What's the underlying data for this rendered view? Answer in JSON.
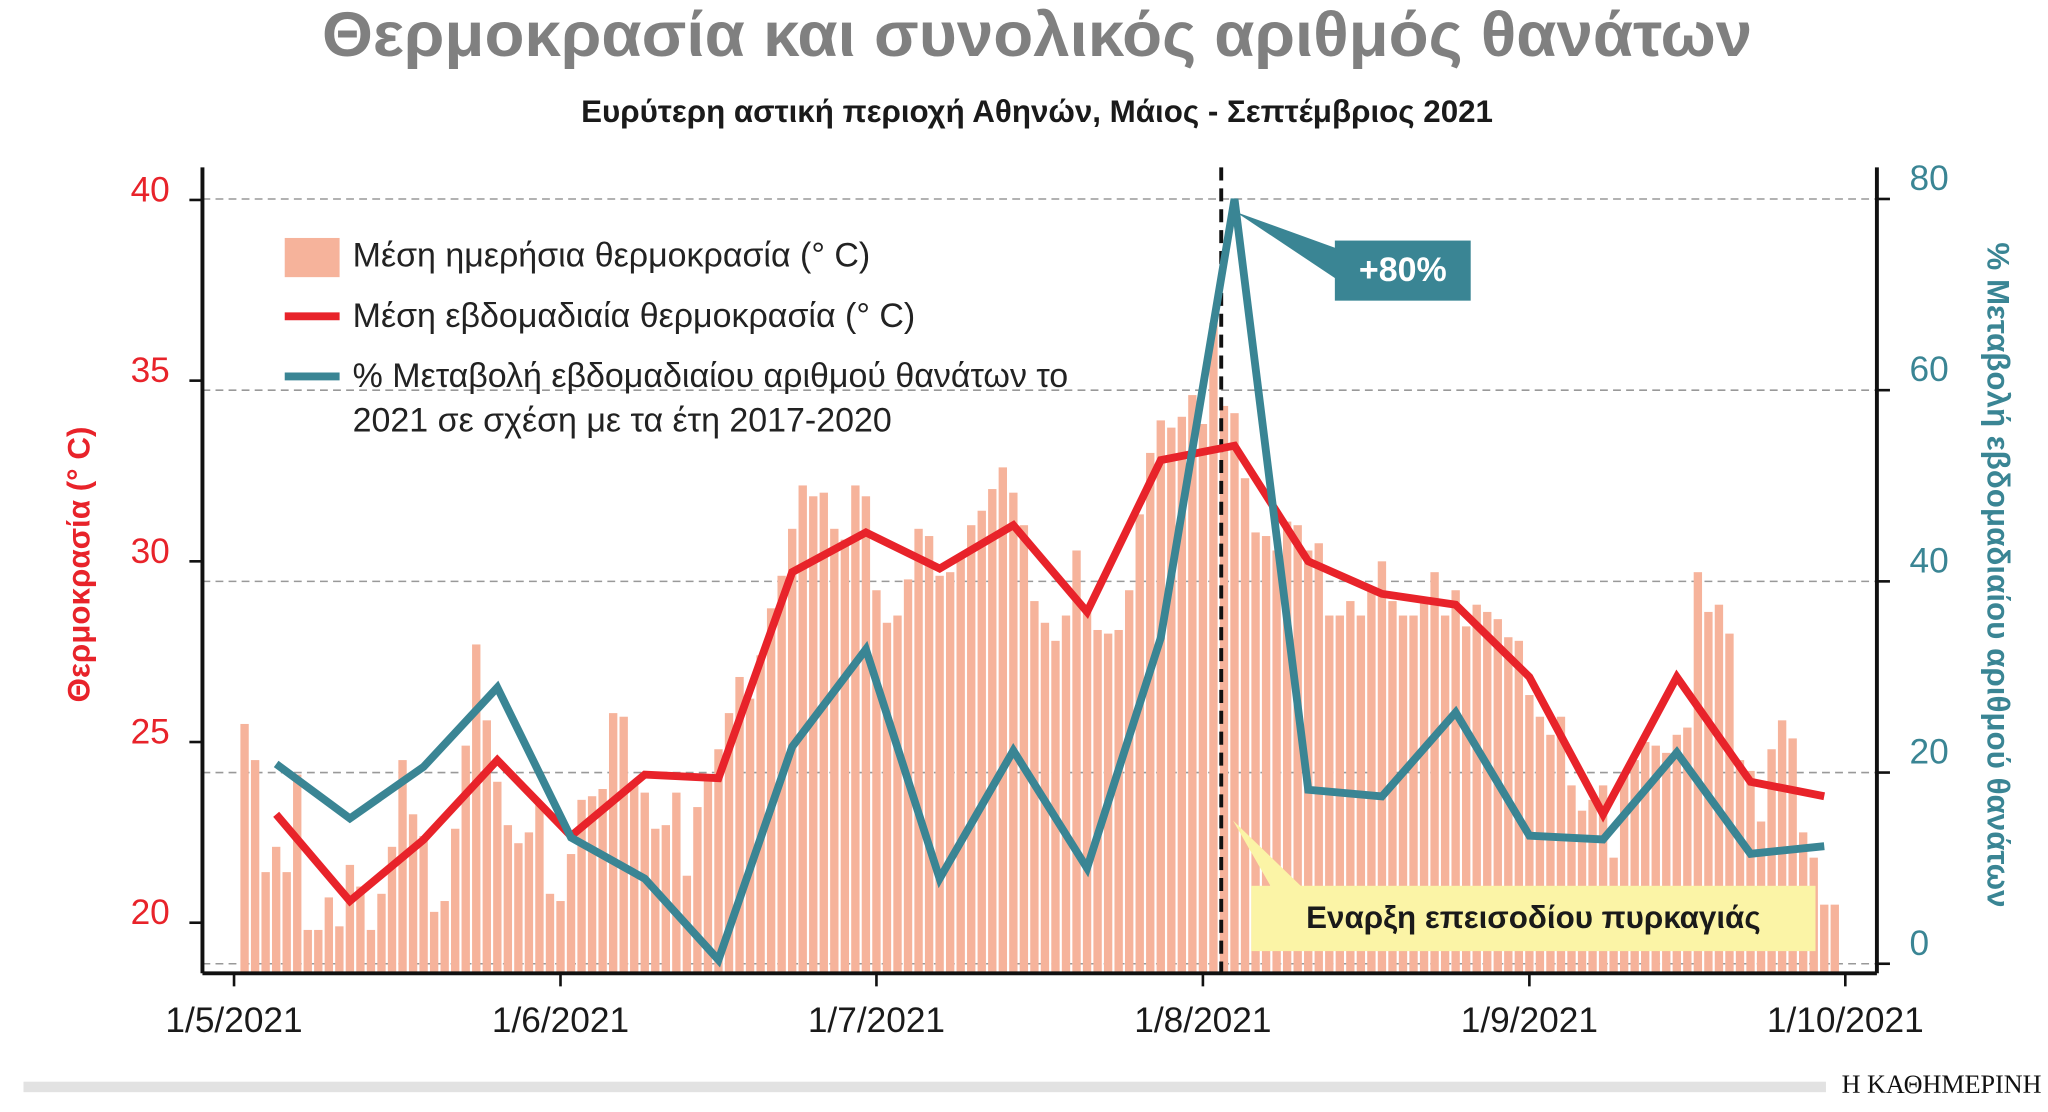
{
  "chart_data": {
    "type": "combo",
    "title": "Θερμοκρασία και συνολικός αριθμός θανάτων",
    "subtitle": "Ευρύτερη αστική περιοχή Αθηνών, Μάιος - Σεπτέμβριος 2021",
    "y_label": "Θερμοκρασία (° C)",
    "y2_label": "% Μεταβολή εβδομαδιαίου αριθμού θανάτων",
    "source": "Η ΚΑΘΗΜΕΡΙΝΗ",
    "xlim": [
      "2021-04-28",
      "2021-10-04"
    ],
    "xticks": [
      {
        "value": "2021-05-01",
        "label": "1/5/2021"
      },
      {
        "value": "2021-06-01",
        "label": "1/6/2021"
      },
      {
        "value": "2021-07-01",
        "label": "1/7/2021"
      },
      {
        "value": "2021-08-01",
        "label": "1/8/2021"
      },
      {
        "value": "2021-09-01",
        "label": "1/9/2021"
      },
      {
        "value": "2021-10-01",
        "label": "1/10/2021"
      }
    ],
    "ylim": [
      18.6,
      40.9
    ],
    "yticks": [
      20,
      25,
      30,
      35,
      40
    ],
    "y2lim": [
      -1,
      83.3
    ],
    "y2ticks": [
      0,
      20,
      40,
      60,
      80
    ],
    "grid": "y2",
    "series": [
      {
        "name": "Μέση ημερήσια θερμοκρασία (° C)",
        "type": "bar",
        "color": "#f6b39b",
        "x": [
          "2021-05-02",
          "2021-05-03",
          "2021-05-04",
          "2021-05-05",
          "2021-05-06",
          "2021-05-07",
          "2021-05-08",
          "2021-05-09",
          "2021-05-10",
          "2021-05-11",
          "2021-05-12",
          "2021-05-13",
          "2021-05-14",
          "2021-05-15",
          "2021-05-16",
          "2021-05-17",
          "2021-05-18",
          "2021-05-19",
          "2021-05-20",
          "2021-05-21",
          "2021-05-22",
          "2021-05-23",
          "2021-05-24",
          "2021-05-25",
          "2021-05-26",
          "2021-05-27",
          "2021-05-28",
          "2021-05-29",
          "2021-05-30",
          "2021-05-31",
          "2021-06-01",
          "2021-06-02",
          "2021-06-03",
          "2021-06-04",
          "2021-06-05",
          "2021-06-06",
          "2021-06-07",
          "2021-06-08",
          "2021-06-09",
          "2021-06-10",
          "2021-06-11",
          "2021-06-12",
          "2021-06-13",
          "2021-06-14",
          "2021-06-15",
          "2021-06-16",
          "2021-06-17",
          "2021-06-18",
          "2021-06-19",
          "2021-06-20",
          "2021-06-21",
          "2021-06-22",
          "2021-06-23",
          "2021-06-24",
          "2021-06-25",
          "2021-06-26",
          "2021-06-27",
          "2021-06-28",
          "2021-06-29",
          "2021-06-30",
          "2021-07-01",
          "2021-07-02",
          "2021-07-03",
          "2021-07-04",
          "2021-07-05",
          "2021-07-06",
          "2021-07-07",
          "2021-07-08",
          "2021-07-09",
          "2021-07-10",
          "2021-07-11",
          "2021-07-12",
          "2021-07-13",
          "2021-07-14",
          "2021-07-15",
          "2021-07-16",
          "2021-07-17",
          "2021-07-18",
          "2021-07-19",
          "2021-07-20",
          "2021-07-21",
          "2021-07-22",
          "2021-07-23",
          "2021-07-24",
          "2021-07-25",
          "2021-07-26",
          "2021-07-27",
          "2021-07-28",
          "2021-07-29",
          "2021-07-30",
          "2021-07-31",
          "2021-08-01",
          "2021-08-02",
          "2021-08-03",
          "2021-08-04",
          "2021-08-05",
          "2021-08-06",
          "2021-08-07",
          "2021-08-08",
          "2021-08-09",
          "2021-08-10",
          "2021-08-11",
          "2021-08-12",
          "2021-08-13",
          "2021-08-14",
          "2021-08-15",
          "2021-08-16",
          "2021-08-17",
          "2021-08-18",
          "2021-08-19",
          "2021-08-20",
          "2021-08-21",
          "2021-08-22",
          "2021-08-23",
          "2021-08-24",
          "2021-08-25",
          "2021-08-26",
          "2021-08-27",
          "2021-08-28",
          "2021-08-29",
          "2021-08-30",
          "2021-08-31",
          "2021-09-01",
          "2021-09-02",
          "2021-09-03",
          "2021-09-04",
          "2021-09-05",
          "2021-09-06",
          "2021-09-07",
          "2021-09-08",
          "2021-09-09",
          "2021-09-10",
          "2021-09-11",
          "2021-09-12",
          "2021-09-13",
          "2021-09-14",
          "2021-09-15",
          "2021-09-16",
          "2021-09-17",
          "2021-09-18",
          "2021-09-19",
          "2021-09-20",
          "2021-09-21",
          "2021-09-22",
          "2021-09-23",
          "2021-09-24",
          "2021-09-25",
          "2021-09-26",
          "2021-09-27",
          "2021-09-28",
          "2021-09-29",
          "2021-09-30"
        ],
        "values": [
          25.5,
          24.5,
          21.4,
          22.1,
          21.4,
          24.1,
          19.8,
          19.8,
          20.7,
          19.9,
          21.6,
          21.0,
          19.8,
          20.8,
          22.1,
          24.5,
          23.0,
          22.4,
          20.3,
          20.6,
          22.6,
          24.9,
          27.7,
          25.6,
          23.9,
          22.7,
          22.2,
          22.5,
          23.3,
          20.8,
          20.6,
          21.9,
          23.4,
          23.5,
          23.7,
          25.8,
          25.7,
          23.8,
          23.6,
          22.6,
          22.7,
          23.6,
          21.3,
          23.2,
          24.1,
          24.8,
          25.8,
          26.8,
          26.2,
          27.4,
          28.7,
          29.6,
          30.9,
          32.1,
          31.8,
          31.9,
          30.9,
          30.6,
          32.1,
          31.8,
          29.2,
          28.3,
          28.5,
          29.5,
          30.9,
          30.7,
          29.6,
          29.7,
          30.1,
          31.0,
          31.4,
          32.0,
          32.6,
          31.9,
          31.0,
          28.9,
          28.3,
          27.8,
          28.5,
          30.3,
          28.6,
          28.1,
          28.0,
          28.1,
          29.2,
          31.3,
          33.0,
          33.9,
          33.7,
          34.0,
          34.6,
          33.8,
          36.6,
          34.3,
          34.1,
          32.3,
          30.8,
          30.7,
          30.3,
          31.1,
          31.0,
          30.3,
          30.5,
          28.5,
          28.5,
          28.9,
          28.5,
          29.2,
          30.0,
          28.9,
          28.5,
          28.5,
          28.9,
          29.7,
          28.5,
          29.2,
          28.2,
          28.8,
          28.6,
          28.4,
          27.9,
          27.8,
          26.3,
          25.7,
          25.2,
          25.7,
          23.8,
          23.1,
          23.4,
          23.8,
          21.8,
          24.1,
          24.5,
          25.0,
          24.9,
          24.7,
          25.2,
          25.4,
          29.7,
          28.6,
          28.8,
          28.0,
          24.5,
          24.2,
          22.8,
          24.8,
          25.6,
          25.1,
          22.5,
          21.8,
          20.5,
          20.5
        ]
      },
      {
        "name": "Μέση εβδομαδιαία θερμοκρασία (° C)",
        "type": "line",
        "color": "#e8232a",
        "x": [
          "2021-05-05",
          "2021-05-12",
          "2021-05-19",
          "2021-05-26",
          "2021-06-02",
          "2021-06-09",
          "2021-06-16",
          "2021-06-23",
          "2021-06-30",
          "2021-07-07",
          "2021-07-14",
          "2021-07-21",
          "2021-07-28",
          "2021-08-04",
          "2021-08-11",
          "2021-08-18",
          "2021-08-25",
          "2021-09-01",
          "2021-09-08",
          "2021-09-15",
          "2021-09-22",
          "2021-09-29"
        ],
        "values": [
          23.0,
          20.6,
          22.3,
          24.5,
          22.4,
          24.1,
          24.0,
          29.7,
          30.8,
          29.8,
          31.0,
          28.6,
          32.8,
          33.2,
          30.0,
          29.1,
          28.8,
          26.8,
          23.0,
          26.8,
          23.9,
          23.5
        ]
      },
      {
        "name": "% Μεταβολή εβδομαδιαίου αριθμού θανάτων το 2021 σε σχέση με τα έτη 2017-2020",
        "type": "line",
        "axis": "y2",
        "color": "#3a8594",
        "x": [
          "2021-05-05",
          "2021-05-12",
          "2021-05-19",
          "2021-05-26",
          "2021-06-02",
          "2021-06-09",
          "2021-06-16",
          "2021-06-23",
          "2021-06-30",
          "2021-07-07",
          "2021-07-14",
          "2021-07-21",
          "2021-07-28",
          "2021-08-04",
          "2021-08-11",
          "2021-08-18",
          "2021-08-25",
          "2021-09-01",
          "2021-09-08",
          "2021-09-15",
          "2021-09-22",
          "2021-09-29"
        ],
        "values": [
          20.9,
          15.2,
          20.6,
          28.9,
          13.2,
          8.9,
          0.4,
          22.7,
          32.9,
          8.9,
          22.3,
          10.0,
          34.1,
          80,
          18.2,
          17.5,
          26.3,
          13.4,
          13.0,
          22.1,
          11.5,
          12.3
        ]
      }
    ],
    "annotations": [
      {
        "text": "+80%"
      },
      {
        "text": "Εναρξη επεισοδίου πυρκαγιάς"
      }
    ]
  }
}
